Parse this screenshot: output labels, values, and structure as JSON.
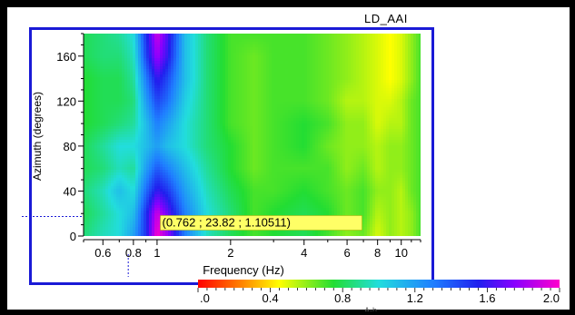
{
  "window": {
    "title": "LD_AAI",
    "bottom_text": "A-h"
  },
  "chart_data": {
    "type": "heatmap",
    "title": "LD_AAI",
    "xlabel": "Frequency (Hz)",
    "ylabel": "Azimuth (degrees)",
    "x_scale": "log",
    "xlim": [
      0.5,
      12.0
    ],
    "ylim": [
      0,
      180
    ],
    "x_major_ticks": [
      0.6,
      0.8,
      1,
      2,
      4,
      6,
      8,
      10
    ],
    "x_tick_labels": [
      "0.6",
      "0.8",
      "1",
      "2",
      "4",
      "6",
      "8",
      "10"
    ],
    "y_major_ticks": [
      0,
      40,
      80,
      120,
      160
    ],
    "y_tick_labels": [
      "0",
      "40",
      "80",
      "120",
      "160"
    ],
    "colorbar": {
      "range": [
        0.0,
        2.0
      ],
      "ticks": [
        0.0,
        0.4,
        0.8,
        1.2,
        1.6,
        2.0
      ],
      "tick_labels": [
        ".0",
        "0.4",
        "0.8",
        "1.2",
        "1.6",
        "2.0"
      ],
      "stops": [
        {
          "v": 0.0,
          "color": "#ff0000"
        },
        {
          "v": 0.25,
          "color": "#ff8800"
        },
        {
          "v": 0.45,
          "color": "#ffff00"
        },
        {
          "v": 0.75,
          "color": "#22dd33"
        },
        {
          "v": 1.0,
          "color": "#22dddd"
        },
        {
          "v": 1.3,
          "color": "#1f7fff"
        },
        {
          "v": 1.55,
          "color": "#2020ee"
        },
        {
          "v": 1.75,
          "color": "#8800ff"
        },
        {
          "v": 2.0,
          "color": "#ff00cc"
        }
      ]
    },
    "cursor": {
      "frequency": 0.762,
      "azimuth": 23.82,
      "value": 1.10511,
      "label": "(0.762 ; 23.82 ; 1.10511)"
    },
    "sample_grid": {
      "frequencies": [
        0.5,
        0.6,
        0.7,
        0.8,
        0.9,
        1.0,
        1.1,
        1.3,
        1.6,
        2.0,
        2.5,
        3.0,
        4.0,
        5.0,
        6.0,
        7.0,
        8.0,
        9.0,
        10.0,
        11.0,
        12.0
      ],
      "azimuths": [
        0,
        20,
        40,
        60,
        80,
        100,
        120,
        140,
        160,
        180
      ],
      "values": [
        [
          0.85,
          0.95,
          1.0,
          1.2,
          1.5,
          2.0,
          1.8,
          1.3,
          0.95,
          0.8,
          0.7,
          0.75,
          0.8,
          0.7,
          0.6,
          0.65,
          0.5,
          0.6,
          0.55,
          0.6,
          0.7
        ],
        [
          0.8,
          0.9,
          1.0,
          1.1,
          1.5,
          1.9,
          1.7,
          1.3,
          1.0,
          0.85,
          0.7,
          0.75,
          0.8,
          0.75,
          0.65,
          0.7,
          0.55,
          0.6,
          0.55,
          0.6,
          0.7
        ],
        [
          0.85,
          0.95,
          1.1,
          1.0,
          1.35,
          1.6,
          1.5,
          1.2,
          0.95,
          0.8,
          0.7,
          0.7,
          0.75,
          0.7,
          0.65,
          0.7,
          0.6,
          0.6,
          0.55,
          0.65,
          0.7
        ],
        [
          0.8,
          0.85,
          0.95,
          0.9,
          1.2,
          1.4,
          1.3,
          1.1,
          0.9,
          0.75,
          0.65,
          0.7,
          0.7,
          0.7,
          0.6,
          0.65,
          0.55,
          0.6,
          0.6,
          0.65,
          0.7
        ],
        [
          0.8,
          0.9,
          1.0,
          1.0,
          1.1,
          1.2,
          1.1,
          1.0,
          0.85,
          0.75,
          0.65,
          0.7,
          0.75,
          0.65,
          0.6,
          0.6,
          0.55,
          0.6,
          0.6,
          0.65,
          0.7
        ],
        [
          0.75,
          0.8,
          0.85,
          0.9,
          1.1,
          1.3,
          1.2,
          1.0,
          0.85,
          0.7,
          0.65,
          0.7,
          0.75,
          0.7,
          0.6,
          0.6,
          0.5,
          0.55,
          0.55,
          0.65,
          0.7
        ],
        [
          0.75,
          0.8,
          0.8,
          0.85,
          1.2,
          1.45,
          1.35,
          1.05,
          0.85,
          0.7,
          0.65,
          0.7,
          0.7,
          0.65,
          0.55,
          0.55,
          0.5,
          0.5,
          0.55,
          0.65,
          0.7
        ],
        [
          0.75,
          0.8,
          0.8,
          0.9,
          1.3,
          1.6,
          1.45,
          1.1,
          0.85,
          0.7,
          0.65,
          0.7,
          0.7,
          0.65,
          0.6,
          0.55,
          0.5,
          0.45,
          0.5,
          0.6,
          0.7
        ],
        [
          0.8,
          0.85,
          0.85,
          0.95,
          1.45,
          1.8,
          1.6,
          1.1,
          0.85,
          0.7,
          0.65,
          0.7,
          0.7,
          0.65,
          0.6,
          0.55,
          0.5,
          0.45,
          0.5,
          0.6,
          0.7
        ],
        [
          0.8,
          0.85,
          0.9,
          1.0,
          1.5,
          1.9,
          1.65,
          1.1,
          0.85,
          0.7,
          0.7,
          0.7,
          0.7,
          0.65,
          0.6,
          0.55,
          0.5,
          0.45,
          0.5,
          0.6,
          0.7
        ]
      ]
    }
  }
}
